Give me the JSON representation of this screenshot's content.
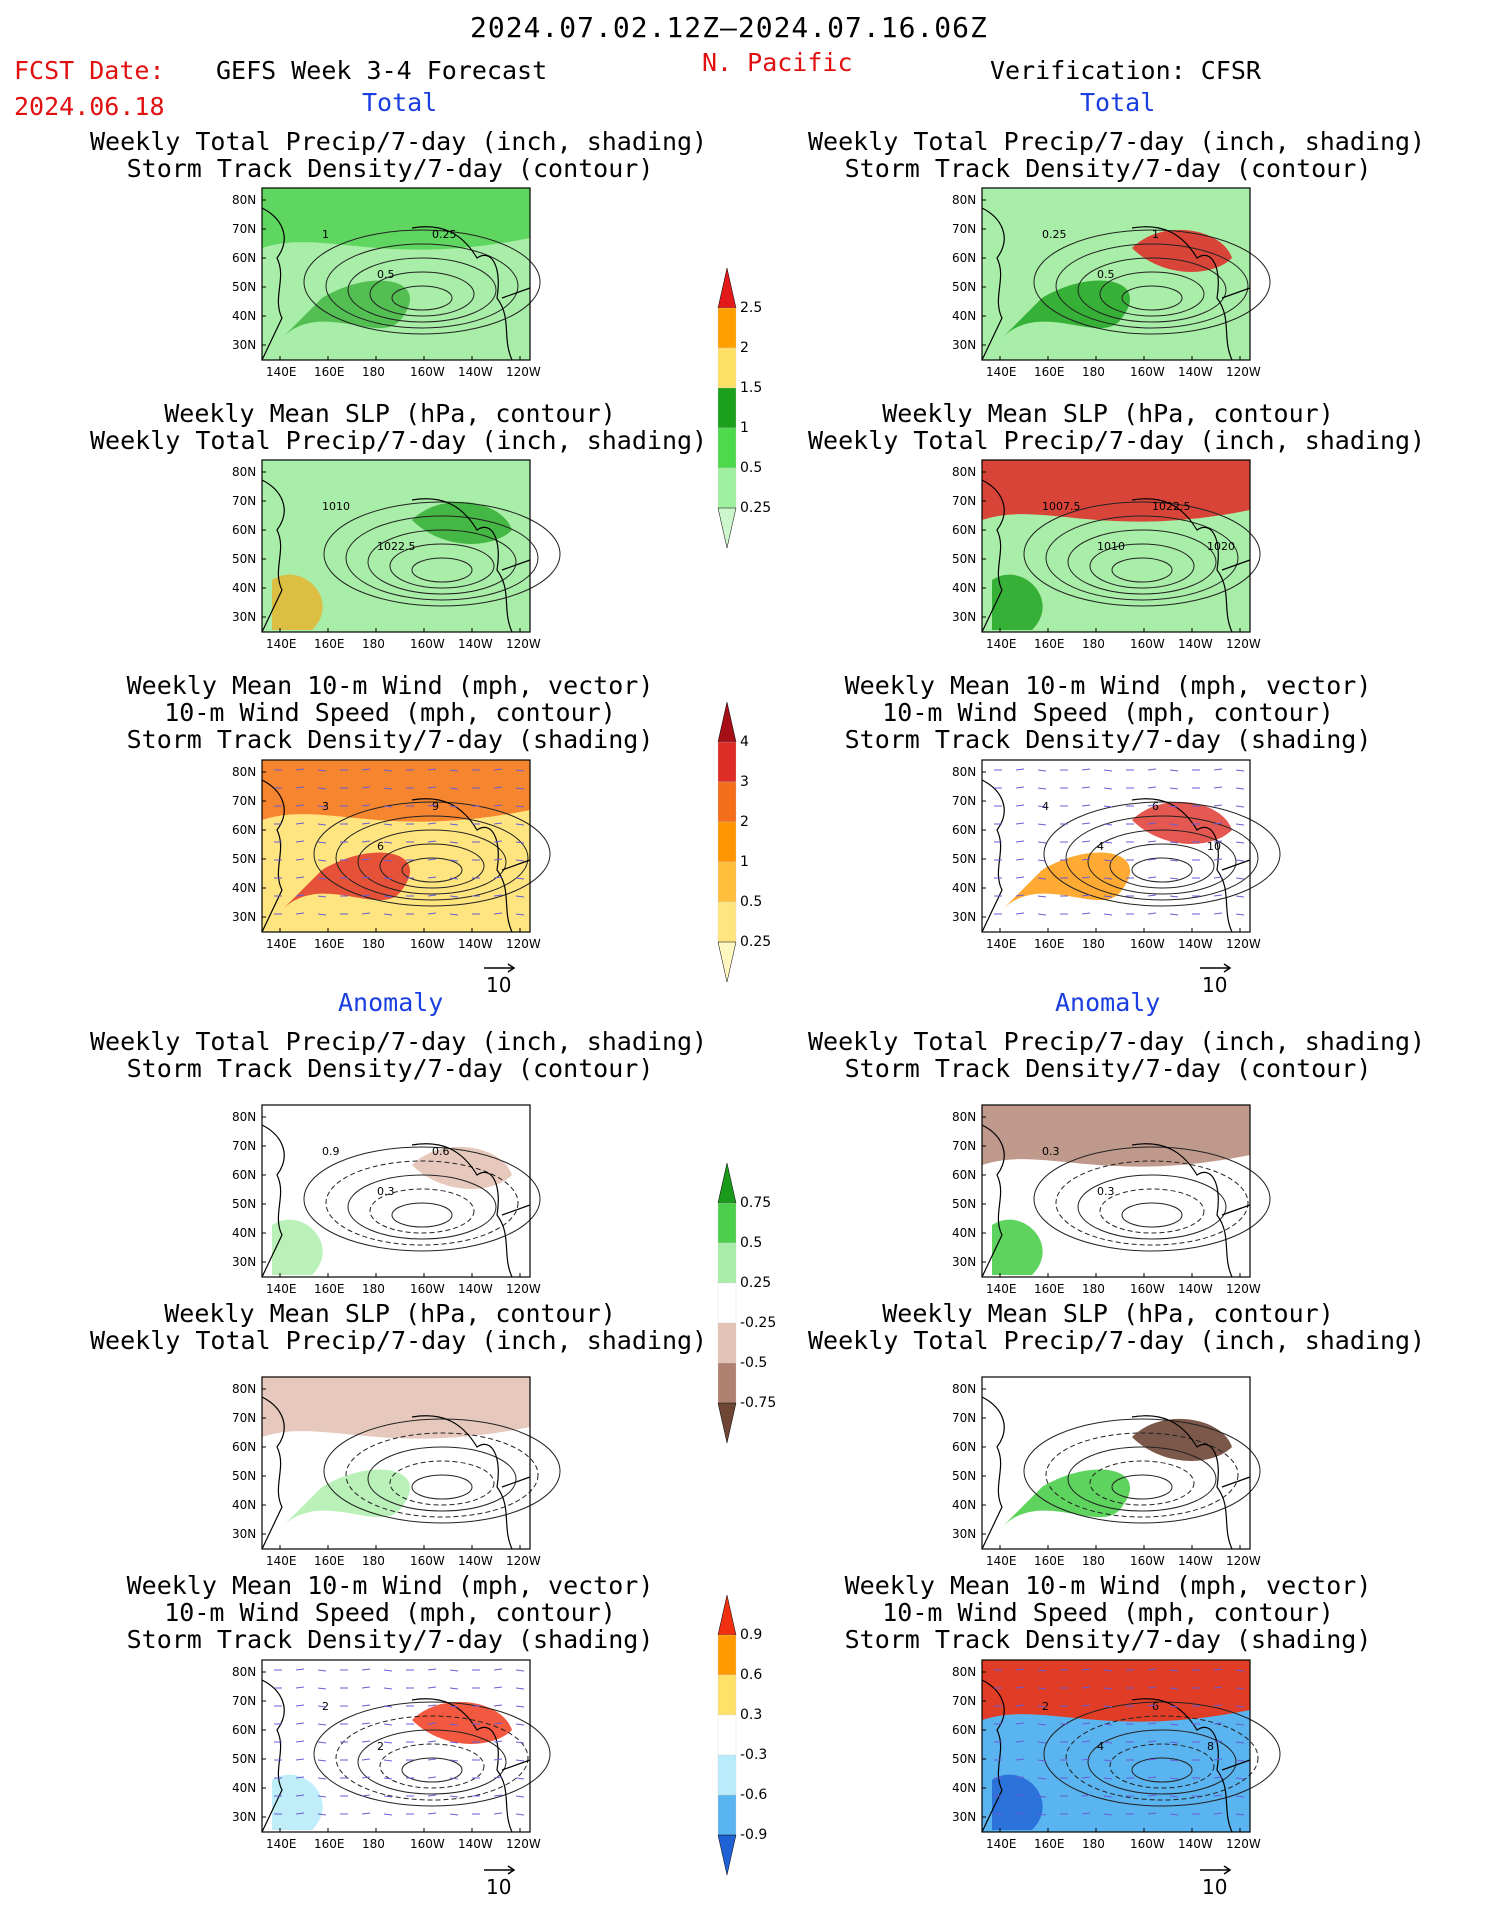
{
  "header": {
    "valid_range": "2024.07.02.12Z–2024.07.16.06Z",
    "fcst_date_label": "FCST Date:",
    "fcst_date_value": "2024.06.18",
    "model_label": "GEFS Week 3-4 Forecast",
    "region": "N. Pacific",
    "verification_label": "Verification: CFSR"
  },
  "sections": {
    "total": "Total",
    "anomaly": "Anomaly"
  },
  "panel_titles": {
    "precip_storm": "Weekly Total Precip/7-day (inch, shading)\nStorm Track Density/7-day (contour)",
    "slp_precip": "Weekly Mean SLP (hPa, contour)\nWeekly Total Precip/7-day (inch, shading)",
    "wind_storm": "Weekly Mean 10-m Wind (mph, vector)\n10-m Wind Speed (mph, contour)\nStorm Track Density/7-day (shading)"
  },
  "axes": {
    "lat_ticks": [
      "80N",
      "70N",
      "60N",
      "50N",
      "40N",
      "30N"
    ],
    "lon_ticks": [
      "140E",
      "160E",
      "180",
      "160W",
      "140W",
      "120W"
    ]
  },
  "vector_ref": "10",
  "colorbars": {
    "precip_total": {
      "labels": [
        "2.5",
        "2",
        "1.5",
        "1",
        "0.5",
        "0.25"
      ],
      "colors": [
        "#e31a1c",
        "#ff9f00",
        "#ffe066",
        "#1aa01a",
        "#4cd94c",
        "#9ff09f",
        "#ccf7cc"
      ]
    },
    "storm_total": {
      "labels": [
        "4",
        "3",
        "2",
        "1",
        "0.5",
        "0.25"
      ],
      "colors": [
        "#a50f15",
        "#de2d26",
        "#f46d1a",
        "#ff9500",
        "#ffbf3c",
        "#ffe580",
        "#fff7c0"
      ]
    },
    "precip_anom": {
      "labels": [
        "0.75",
        "0.5",
        "0.25",
        "-0.25",
        "-0.5",
        "-0.75"
      ],
      "colors": [
        "#1a9a1a",
        "#4ccf4c",
        "#a8eea8",
        "#ffffff",
        "#e3c3b5",
        "#b08070",
        "#6e4636"
      ]
    },
    "storm_anom": {
      "labels": [
        "0.9",
        "0.6",
        "0.3",
        "-0.3",
        "-0.6",
        "-0.9"
      ],
      "colors": [
        "#f03010",
        "#ff9a00",
        "#ffe068",
        "#ffffff",
        "#b8ecfa",
        "#5ab4f0",
        "#1f62d6"
      ]
    }
  },
  "panels": [
    {
      "id": "fcst-total-precip",
      "bg": "#a8eea8",
      "blobs": [
        {
          "c": "#4ccf4c",
          "a": 0.8
        },
        {
          "c": "#1aa01a",
          "a": 0.6
        }
      ],
      "contours": [
        "1",
        "0.5",
        "0.25"
      ]
    },
    {
      "id": "ver-total-precip",
      "bg": "#a8eea8",
      "blobs": [
        {
          "c": "#1aa01a",
          "a": 0.8
        },
        {
          "c": "#e31a1c",
          "a": 0.8
        }
      ],
      "contours": [
        "0.25",
        "0.5",
        "1"
      ]
    },
    {
      "id": "fcst-total-slp",
      "bg": "#a8eea8",
      "blobs": [
        {
          "c": "#1aa01a",
          "a": 0.7
        },
        {
          "c": "#ff9f00",
          "a": 0.6
        }
      ],
      "contours": [
        "1010",
        "1022.5"
      ]
    },
    {
      "id": "ver-total-slp",
      "bg": "#a8eea8",
      "blobs": [
        {
          "c": "#1aa01a",
          "a": 0.8
        },
        {
          "c": "#e31a1c",
          "a": 0.8
        }
      ],
      "contours": [
        "1007.5",
        "1010",
        "1022.5",
        "1020"
      ]
    },
    {
      "id": "fcst-total-wind",
      "bg": "#ffe580",
      "blobs": [
        {
          "c": "#f46d1a",
          "a": 0.8
        },
        {
          "c": "#de2d26",
          "a": 0.8
        }
      ],
      "contours": [
        "3",
        "6",
        "9"
      ]
    },
    {
      "id": "ver-total-wind",
      "bg": "#ffffff",
      "blobs": [
        {
          "c": "#ff9500",
          "a": 0.8
        },
        {
          "c": "#de2d26",
          "a": 0.8
        }
      ],
      "contours": [
        "4",
        "4",
        "6",
        "10"
      ]
    },
    {
      "id": "fcst-anom-precip",
      "bg": "#ffffff",
      "blobs": [
        {
          "c": "#e3c3b5",
          "a": 0.9
        },
        {
          "c": "#a8eea8",
          "a": 0.8
        }
      ],
      "contours": [
        "0.9",
        "0.3",
        "0.6"
      ]
    },
    {
      "id": "ver-anom-precip",
      "bg": "#ffffff",
      "blobs": [
        {
          "c": "#4ccf4c",
          "a": 0.9
        },
        {
          "c": "#b08070",
          "a": 0.8
        }
      ],
      "contours": [
        "0.3",
        "0.3"
      ]
    },
    {
      "id": "fcst-anom-slp",
      "bg": "#ffffff",
      "blobs": [
        {
          "c": "#e3c3b5",
          "a": 0.9
        },
        {
          "c": "#a8eea8",
          "a": 0.8
        }
      ],
      "contours": []
    },
    {
      "id": "ver-anom-slp",
      "bg": "#ffffff",
      "blobs": [
        {
          "c": "#4ccf4c",
          "a": 0.9
        },
        {
          "c": "#6e4636",
          "a": 0.9
        }
      ],
      "contours": []
    },
    {
      "id": "fcst-anom-wind",
      "bg": "#ffffff",
      "blobs": [
        {
          "c": "#f03010",
          "a": 0.8
        },
        {
          "c": "#b8ecfa",
          "a": 0.9
        }
      ],
      "contours": [
        "2",
        "2"
      ]
    },
    {
      "id": "ver-anom-wind",
      "bg": "#5ab4f0",
      "blobs": [
        {
          "c": "#1f62d6",
          "a": 0.8
        },
        {
          "c": "#f03010",
          "a": 0.9
        }
      ],
      "contours": [
        "2",
        "4",
        "6",
        "8"
      ]
    }
  ]
}
